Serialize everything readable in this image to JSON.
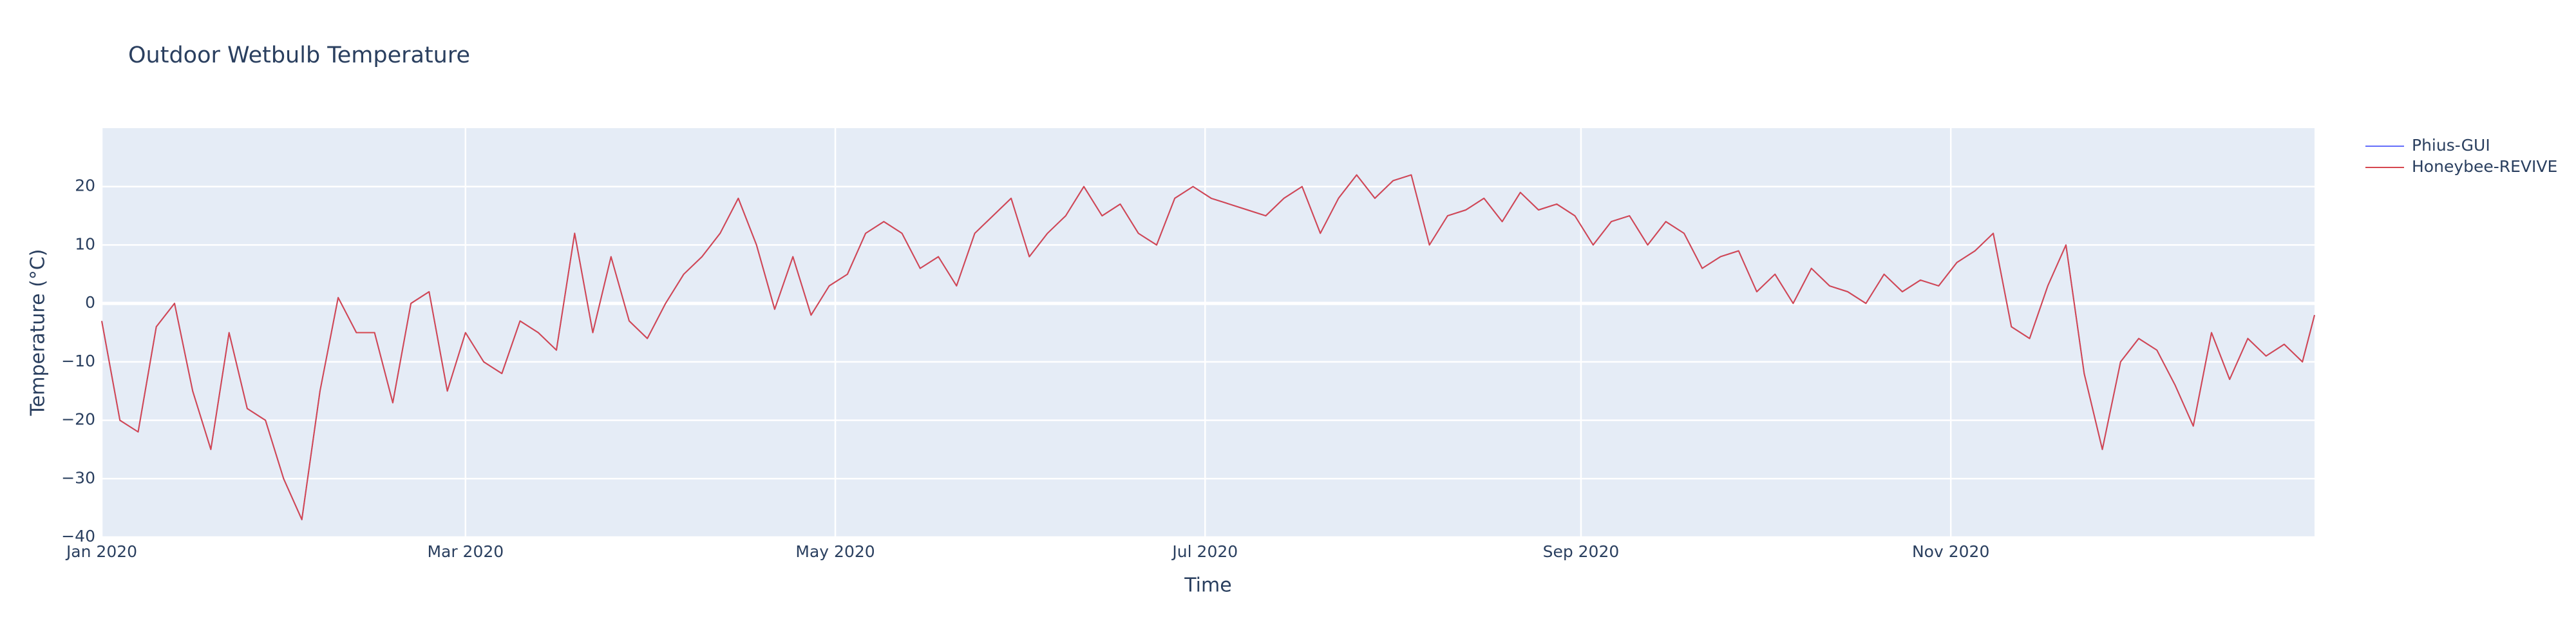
{
  "chart_data": {
    "type": "line",
    "title": "Outdoor Wetbulb Temperature",
    "x_label": "Time",
    "y_label": "Temperature (°C)",
    "x": [
      0,
      3,
      6,
      9,
      12,
      15,
      18,
      21,
      24,
      27,
      30,
      33,
      36,
      39,
      42,
      45,
      48,
      51,
      54,
      57,
      60,
      63,
      66,
      69,
      72,
      75,
      78,
      81,
      84,
      87,
      90,
      93,
      96,
      99,
      102,
      105,
      108,
      111,
      114,
      117,
      120,
      123,
      126,
      129,
      132,
      135,
      138,
      141,
      144,
      147,
      150,
      153,
      156,
      159,
      162,
      165,
      168,
      171,
      174,
      177,
      180,
      183,
      186,
      189,
      192,
      195,
      198,
      201,
      204,
      207,
      210,
      213,
      216,
      219,
      222,
      225,
      228,
      231,
      234,
      237,
      240,
      243,
      246,
      249,
      252,
      255,
      258,
      261,
      264,
      267,
      270,
      273,
      276,
      279,
      282,
      285,
      288,
      291,
      294,
      297,
      300,
      303,
      306,
      309,
      312,
      315,
      318,
      321,
      324,
      327,
      330,
      333,
      336,
      339,
      342,
      345,
      348,
      351,
      354,
      357,
      360,
      363,
      365
    ],
    "series": [
      {
        "name": "Phius-GUI",
        "color": "#636efa",
        "values": [
          -3,
          -20,
          -22,
          -4,
          0,
          -15,
          -25,
          -5,
          -18,
          -20,
          -30,
          -37,
          -15,
          1,
          -5,
          -5,
          -17,
          0,
          2,
          -15,
          -5,
          -10,
          -12,
          -3,
          -5,
          -8,
          12,
          -5,
          8,
          -3,
          -6,
          0,
          5,
          8,
          12,
          18,
          10,
          -1,
          8,
          -2,
          3,
          5,
          12,
          14,
          12,
          6,
          8,
          3,
          12,
          15,
          18,
          8,
          12,
          15,
          20,
          15,
          17,
          12,
          10,
          18,
          20,
          18,
          17,
          16,
          15,
          18,
          20,
          12,
          18,
          22,
          18,
          21,
          22,
          10,
          15,
          16,
          18,
          14,
          19,
          16,
          17,
          15,
          10,
          14,
          15,
          10,
          14,
          12,
          6,
          8,
          9,
          2,
          5,
          0,
          6,
          3,
          2,
          0,
          5,
          2,
          4,
          3,
          7,
          9,
          12,
          -4,
          -6,
          3,
          10,
          -12,
          -25,
          -10,
          -6,
          -8,
          -14,
          -21,
          -5,
          -13,
          -6,
          -9,
          -7,
          -10,
          -2
        ]
      },
      {
        "name": "Honeybee-REVIVE",
        "color": "#d6474f",
        "values": [
          -3,
          -20,
          -22,
          -4,
          0,
          -15,
          -25,
          -5,
          -18,
          -20,
          -30,
          -37,
          -15,
          1,
          -5,
          -5,
          -17,
          0,
          2,
          -15,
          -5,
          -10,
          -12,
          -3,
          -5,
          -8,
          12,
          -5,
          8,
          -3,
          -6,
          0,
          5,
          8,
          12,
          18,
          10,
          -1,
          8,
          -2,
          3,
          5,
          12,
          14,
          12,
          6,
          8,
          3,
          12,
          15,
          18,
          8,
          12,
          15,
          20,
          15,
          17,
          12,
          10,
          18,
          20,
          18,
          17,
          16,
          15,
          18,
          20,
          12,
          18,
          22,
          18,
          21,
          22,
          10,
          15,
          16,
          18,
          14,
          19,
          16,
          17,
          15,
          10,
          14,
          15,
          10,
          14,
          12,
          6,
          8,
          9,
          2,
          5,
          0,
          6,
          3,
          2,
          0,
          5,
          2,
          4,
          3,
          7,
          9,
          12,
          -4,
          -6,
          3,
          10,
          -12,
          -25,
          -10,
          -6,
          -8,
          -14,
          -21,
          -5,
          -13,
          -6,
          -9,
          -7,
          -10,
          -2
        ]
      }
    ],
    "xlim": [
      0,
      365
    ],
    "xticks": [
      {
        "value": 0,
        "label": "Jan 2020"
      },
      {
        "value": 60,
        "label": "Mar 2020"
      },
      {
        "value": 121,
        "label": "May 2020"
      },
      {
        "value": 182,
        "label": "Jul 2020"
      },
      {
        "value": 244,
        "label": "Sep 2020"
      },
      {
        "value": 305,
        "label": "Nov 2020"
      }
    ],
    "ylim": [
      -40,
      30
    ],
    "yticks": [
      {
        "value": -40,
        "label": "−40"
      },
      {
        "value": -30,
        "label": "−30"
      },
      {
        "value": -20,
        "label": "−20"
      },
      {
        "value": -10,
        "label": "−10"
      },
      0,
      10,
      20
    ],
    "grid": true
  }
}
